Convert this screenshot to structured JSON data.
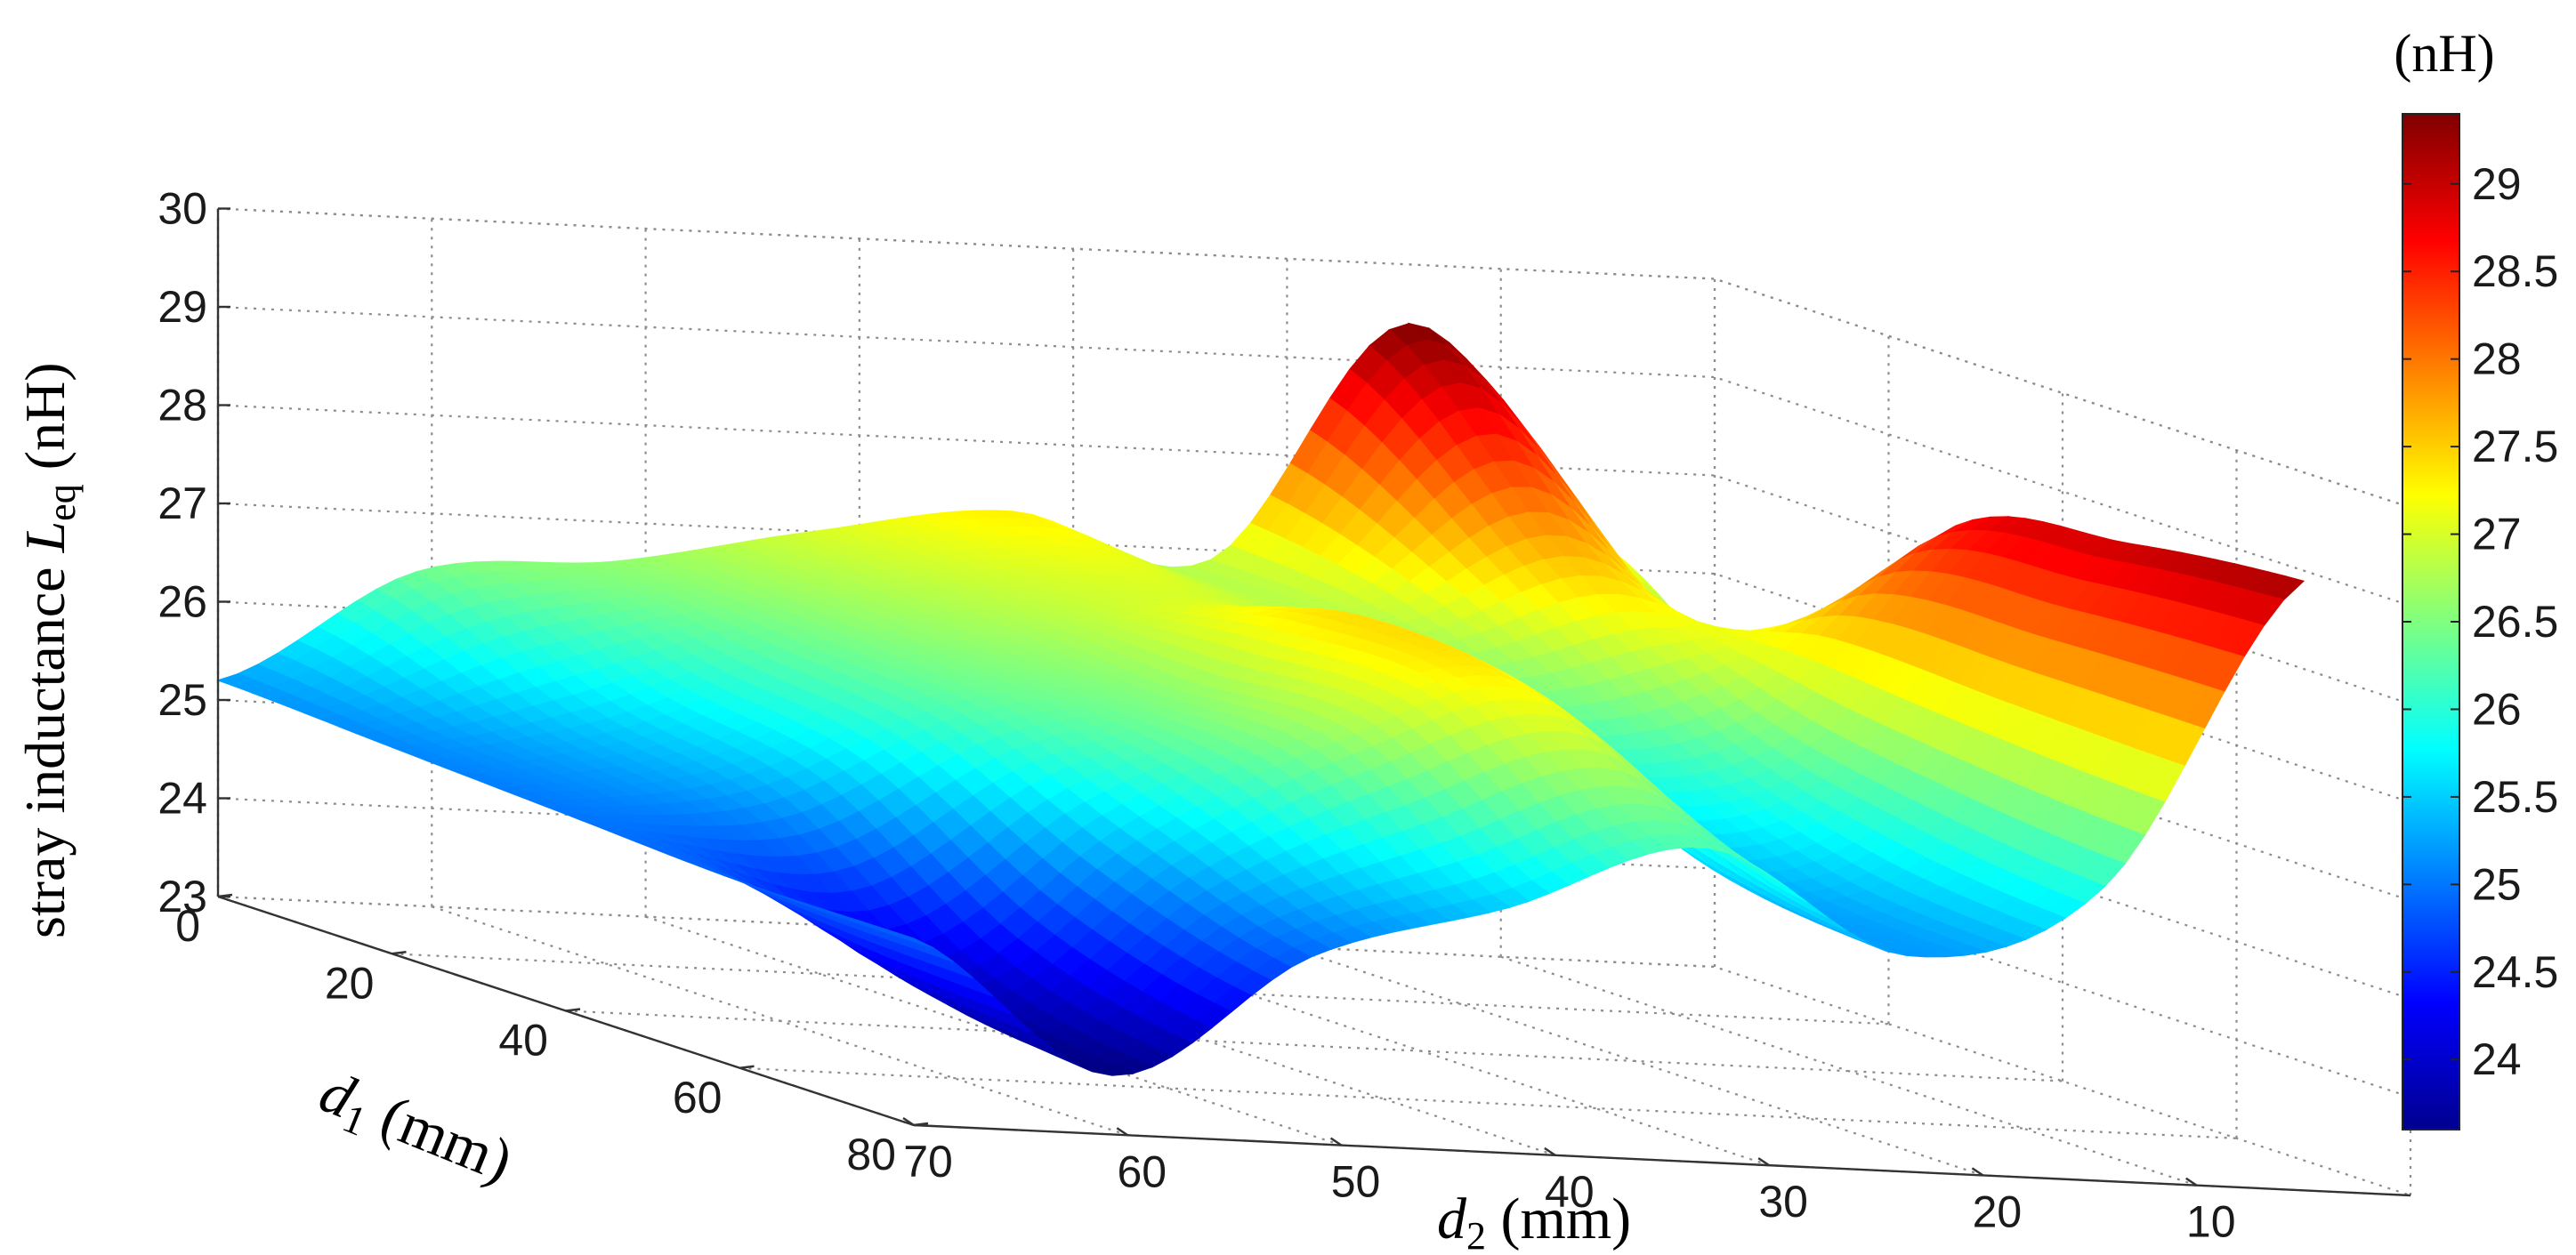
{
  "chart_data": {
    "type": "surface3d",
    "title": "",
    "zlabel_prefix": "stray inductance ",
    "zlabel_symbol": "L",
    "zlabel_subscript": "eq",
    "zlabel_suffix": " (nH)",
    "xlabel_symbol": "d",
    "xlabel_subscript": "1",
    "xlabel_suffix": " (mm)",
    "ylabel_symbol": "d",
    "ylabel_subscript": "2",
    "ylabel_suffix": " (mm)",
    "colorbar_unit": "(nH)",
    "d1_ticks": [
      "0",
      "20",
      "40",
      "60",
      "80"
    ],
    "d1_range": [
      0,
      80
    ],
    "d2_ticks": [
      "70",
      "60",
      "50",
      "40",
      "30",
      "20",
      "10"
    ],
    "d2_range": [
      0,
      70
    ],
    "z_ticks": [
      "23",
      "24",
      "25",
      "26",
      "27",
      "28",
      "29",
      "30"
    ],
    "z_range": [
      23,
      30
    ],
    "colorbar_ticks": [
      "24",
      "24.5",
      "25",
      "25.5",
      "26",
      "26.5",
      "27",
      "27.5",
      "28",
      "28.5",
      "29"
    ],
    "color_range": [
      23.6,
      29.4
    ],
    "colormap": "jet",
    "surface": {
      "d1": [
        0,
        20,
        40,
        60,
        80
      ],
      "d2": [
        70,
        60,
        50,
        40,
        30,
        20,
        10,
        5
      ],
      "Leq": [
        [
          25.2,
          26.4,
          26.6,
          27.0,
          27.3,
          26.9,
          29.4,
          27.2
        ],
        [
          25.1,
          25.6,
          26.4,
          26.8,
          27.0,
          26.8,
          27.6,
          26.3
        ],
        [
          25.0,
          25.2,
          26.2,
          26.6,
          27.4,
          26.2,
          26.6,
          28.6
        ],
        [
          24.9,
          24.0,
          25.5,
          26.6,
          27.2,
          25.4,
          26.2,
          29.0
        ],
        [
          24.9,
          23.6,
          24.9,
          25.5,
          26.2,
          25.2,
          26.0,
          29.2
        ]
      ]
    }
  }
}
